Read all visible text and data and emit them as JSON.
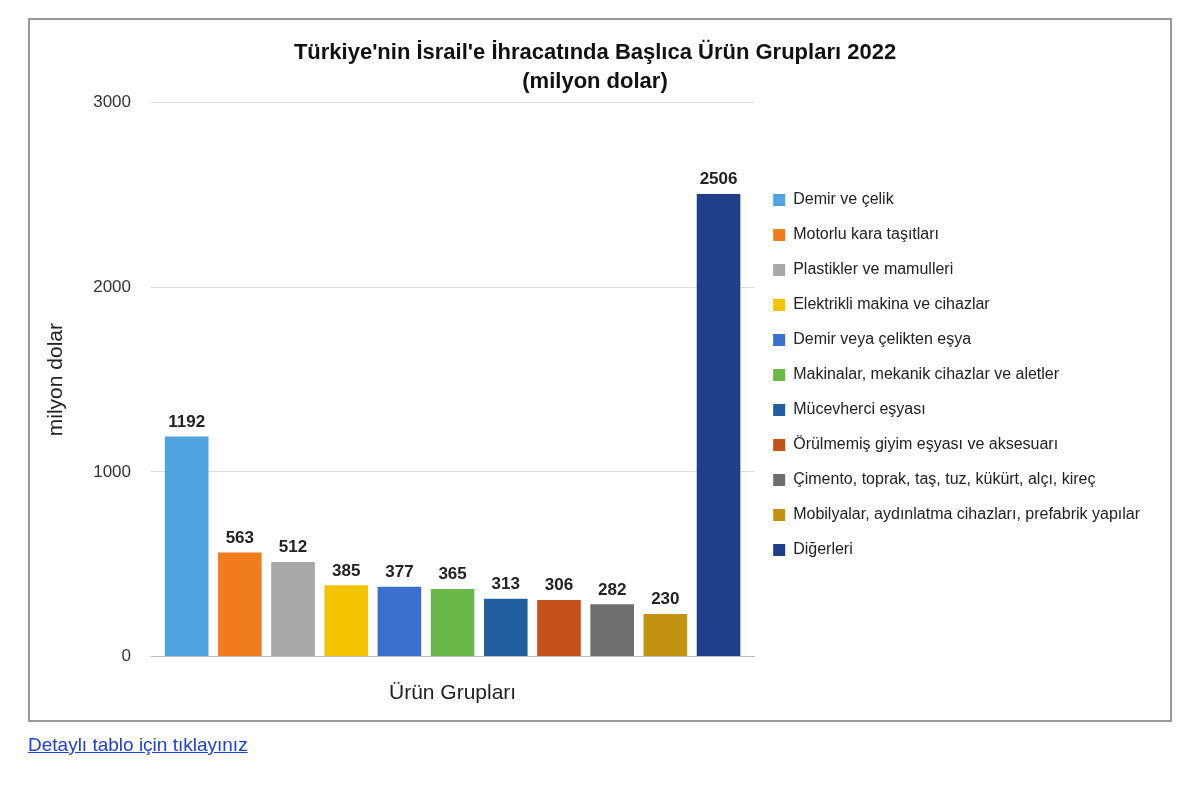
{
  "chart_data": {
    "type": "bar",
    "title": "Türkiye'nin İsrail'e İhracatında Başlıca Ürün Grupları 2022",
    "subtitle": "(milyon dolar)",
    "xlabel": "Ürün Grupları",
    "ylabel": "milyon dolar",
    "categories": [
      null
    ],
    "series": [
      {
        "name": "Demir ve çelik",
        "color": "#4ea3e0",
        "values": [
          1192
        ]
      },
      {
        "name": "Motorlu kara taşıtları",
        "color": "#f07c1e",
        "values": [
          563
        ]
      },
      {
        "name": "Plastikler ve mamulleri",
        "color": "#a8a8a8",
        "values": [
          512
        ]
      },
      {
        "name": "Elektrikli makina ve cihazlar",
        "color": "#f5c400",
        "values": [
          385
        ]
      },
      {
        "name": "Demir veya çelikten eşya",
        "color": "#3a6fd0",
        "values": [
          377
        ]
      },
      {
        "name": "Makinalar, mekanik cihazlar ve aletler",
        "color": "#6ab849",
        "values": [
          365
        ]
      },
      {
        "name": "Mücevherci eşyası",
        "color": "#1f5fa0",
        "values": [
          313
        ]
      },
      {
        "name": "Örülmemiş giyim eşyası ve aksesuarı",
        "color": "#c4501a",
        "values": [
          306
        ]
      },
      {
        "name": "Çimento, toprak, taş, tuz, kükürt, alçı, kireç",
        "color": "#6e6e6e",
        "values": [
          282
        ]
      },
      {
        "name": "Mobilyalar, aydınlatma cihazları, prefabrik yapılar",
        "color": "#c49212",
        "values": [
          230
        ]
      },
      {
        "name": "Diğerleri",
        "color": "#1f3f8a",
        "values": [
          2506
        ]
      }
    ],
    "ylim": [
      0,
      3000
    ],
    "yticks": [
      0,
      1000,
      2000,
      3000
    ],
    "grid": "y",
    "legend": "right",
    "data_labels": true,
    "annotations": [
      "Detaylı tablo için tıklayınız"
    ]
  }
}
